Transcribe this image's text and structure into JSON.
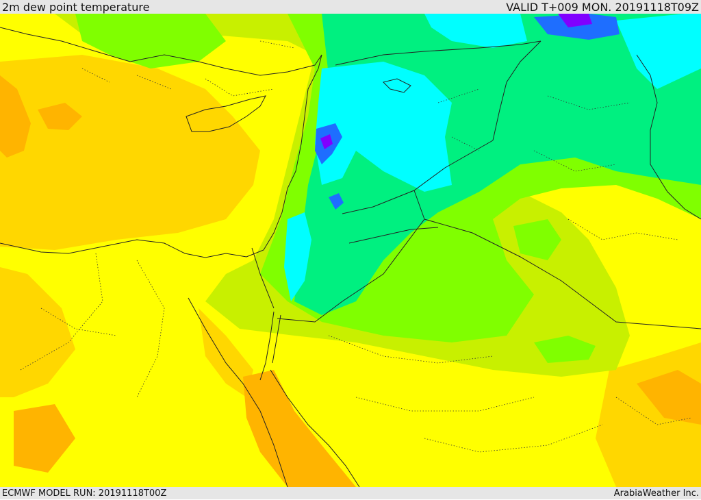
{
  "header": {
    "title": "2m dew point temperature",
    "valid": "VALID T+009 MON. 20191118T09Z"
  },
  "footer": {
    "model_run": "ECMWF MODEL RUN: 20191118T00Z",
    "credit": "ArabiaWeather Inc."
  },
  "colors": {
    "background_yellow": "#ffff00",
    "gold": "#ffd700",
    "orange": "#ffb400",
    "yellow_green": "#c8f000",
    "green": "#80ff00",
    "sea_green": "#00f080",
    "cyan": "#00ffff",
    "blue": "#1e6eff",
    "violet": "#8000ff",
    "coastline": "#222222"
  }
}
